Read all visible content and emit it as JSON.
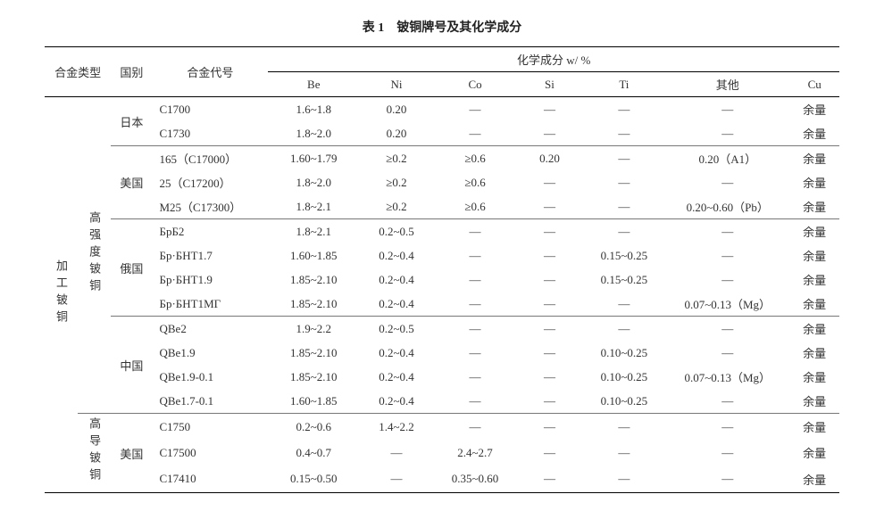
{
  "caption": "表 1　铍铜牌号及其化学成分",
  "head": {
    "alloy_type": "合金类型",
    "country": "国别",
    "alloy_code": "合金代号",
    "chem_title": "化学成分 w/ %",
    "Be": "Be",
    "Ni": "Ni",
    "Co": "Co",
    "Si": "Si",
    "Ti": "Ti",
    "other": "其他",
    "Cu": "Cu"
  },
  "cat_main": "加工铍铜",
  "cat_sub1": "高强度铍铜",
  "cat_sub2": "高导铍铜",
  "dash": "—",
  "groups": [
    {
      "country": "日本",
      "rows": [
        {
          "code": "C1700",
          "be": "1.6~1.8",
          "ni": "0.20",
          "co": "—",
          "si": "—",
          "ti": "—",
          "oth": "—",
          "cu": "余量"
        },
        {
          "code": "C1730",
          "be": "1.8~2.0",
          "ni": "0.20",
          "co": "—",
          "si": "—",
          "ti": "—",
          "oth": "—",
          "cu": "余量"
        }
      ]
    },
    {
      "country": "美国",
      "rows": [
        {
          "code": "165（C17000）",
          "be": "1.60~1.79",
          "ni": "≥0.2",
          "co": "≥0.6",
          "si": "0.20",
          "ti": "—",
          "oth": "0.20（A1）",
          "cu": "余量"
        },
        {
          "code": "25（C17200）",
          "be": "1.8~2.0",
          "ni": "≥0.2",
          "co": "≥0.6",
          "si": "—",
          "ti": "—",
          "oth": "—",
          "cu": "余量"
        },
        {
          "code": "M25（C17300）",
          "be": "1.8~2.1",
          "ni": "≥0.2",
          "co": "≥0.6",
          "si": "—",
          "ti": "—",
          "oth": "0.20~0.60（Pb）",
          "cu": "余量"
        }
      ]
    },
    {
      "country": "俄国",
      "rows": [
        {
          "code": "БрБ2",
          "be": "1.8~2.1",
          "ni": "0.2~0.5",
          "co": "—",
          "si": "—",
          "ti": "—",
          "oth": "—",
          "cu": "余量"
        },
        {
          "code": "Бр·БНТ1.7",
          "be": "1.60~1.85",
          "ni": "0.2~0.4",
          "co": "—",
          "si": "—",
          "ti": "0.15~0.25",
          "oth": "—",
          "cu": "余量"
        },
        {
          "code": "Бр·БНТ1.9",
          "be": "1.85~2.10",
          "ni": "0.2~0.4",
          "co": "—",
          "si": "—",
          "ti": "0.15~0.25",
          "oth": "—",
          "cu": "余量"
        },
        {
          "code": "Бр·БНТ1МГ",
          "be": "1.85~2.10",
          "ni": "0.2~0.4",
          "co": "—",
          "si": "—",
          "ti": "—",
          "oth": "0.07~0.13（Mg）",
          "cu": "余量"
        }
      ]
    },
    {
      "country": "中国",
      "rows": [
        {
          "code": "QBe2",
          "be": "1.9~2.2",
          "ni": "0.2~0.5",
          "co": "—",
          "si": "—",
          "ti": "—",
          "oth": "—",
          "cu": "余量"
        },
        {
          "code": "QBe1.9",
          "be": "1.85~2.10",
          "ni": "0.2~0.4",
          "co": "—",
          "si": "—",
          "ti": "0.10~0.25",
          "oth": "—",
          "cu": "余量"
        },
        {
          "code": "QBe1.9-0.1",
          "be": "1.85~2.10",
          "ni": "0.2~0.4",
          "co": "—",
          "si": "—",
          "ti": "0.10~0.25",
          "oth": "0.07~0.13（Mg）",
          "cu": "余量"
        },
        {
          "code": "QBe1.7-0.1",
          "be": "1.60~1.85",
          "ni": "0.2~0.4",
          "co": "—",
          "si": "—",
          "ti": "0.10~0.25",
          "oth": "—",
          "cu": "余量"
        }
      ]
    }
  ],
  "groups2": [
    {
      "country": "美国",
      "rows": [
        {
          "code": "C1750",
          "be": "0.2~0.6",
          "ni": "1.4~2.2",
          "co": "—",
          "si": "—",
          "ti": "—",
          "oth": "—",
          "cu": "余量"
        },
        {
          "code": "C17500",
          "be": "0.4~0.7",
          "ni": "—",
          "co": "2.4~2.7",
          "si": "—",
          "ti": "—",
          "oth": "—",
          "cu": "余量"
        },
        {
          "code": "C17410",
          "be": "0.15~0.50",
          "ni": "—",
          "co": "0.35~0.60",
          "si": "—",
          "ti": "—",
          "oth": "—",
          "cu": "余量"
        }
      ]
    }
  ]
}
